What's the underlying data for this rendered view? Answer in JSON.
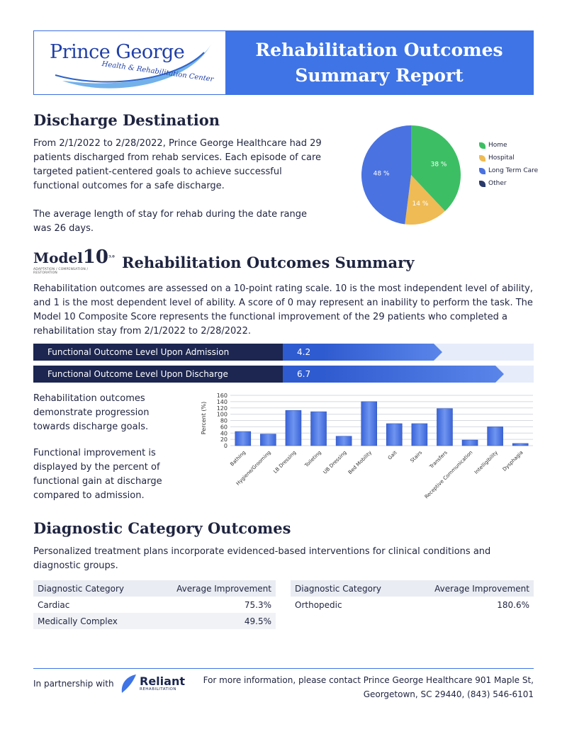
{
  "header": {
    "logo_title": "Prince George",
    "logo_subtitle": "Health & Rehabilitation Center",
    "title_line1": "Rehabilitation Outcomes",
    "title_line2": "Summary Report"
  },
  "discharge": {
    "heading": "Discharge Destination",
    "para1": "From 2/1/2022 to 2/28/2022, Prince George Healthcare had 29 patients discharged from rehab services. Each episode of care targeted patient-centered goals to achieve successful functional outcomes for a safe discharge.",
    "para2": "The average length of stay for rehab during the date range was 26 days."
  },
  "pie_chart": {
    "type": "pie",
    "slices": [
      {
        "name": "Home",
        "value": 38,
        "label": "38 %",
        "color": "#3cbf64"
      },
      {
        "name": "Hospital",
        "value": 14,
        "label": "14 %",
        "color": "#eebb55"
      },
      {
        "name": "Long Term Care",
        "value": 48,
        "label": "48 %",
        "color": "#4a72e0"
      },
      {
        "name": "Other",
        "value": 0,
        "label": "",
        "color": "#2a3a6a"
      }
    ]
  },
  "model10": {
    "logo_m": "M",
    "logo_odel": "odel",
    "logo_ten": "10",
    "logo_sup": "3.0",
    "logo_tagline": "ADAPTATION / COMPENSATION / RESTORATION"
  },
  "summary": {
    "heading": "Rehabilitation Outcomes Summary",
    "para": "Rehabilitation outcomes are assessed on a 10-point rating scale. 10 is the most independent level of ability, and 1 is the most dependent level of ability. A score of 0 may represent an inability to perform the task. The Model 10 Composite Score represents the functional improvement of the 29 patients who completed a rehabilitation stay from 2/1/2022 to 2/28/2022.",
    "admission_label": "Functional Outcome Level Upon Admission",
    "admission_value": "4.2",
    "admission_score": 4.2,
    "discharge_label": "Functional Outcome Level Upon Discharge",
    "discharge_value": "6.7",
    "discharge_score": 6.7,
    "side_para1": "Rehabilitation outcomes demonstrate progression towards discharge goals.",
    "side_para2": "Functional improvement is displayed by the percent of functional gain at discharge compared to admission."
  },
  "chart_data": {
    "type": "bar",
    "title": "",
    "xlabel": "",
    "ylabel": "Percent (%)",
    "ylim": [
      0,
      160
    ],
    "yticks": [
      "0",
      "20",
      "40",
      "60",
      "80",
      "100",
      "120",
      "140",
      "160"
    ],
    "categories": [
      "Bathing",
      "Hygiene/Grooming",
      "LB Dressing",
      "Toileting",
      "UB Dressing",
      "Bed Mobility",
      "Gait",
      "Stairs",
      "Transfers",
      "Receptive Communication",
      "Intelligibility",
      "Dysphagia"
    ],
    "values": [
      45,
      37,
      112,
      108,
      30,
      140,
      70,
      70,
      118,
      18,
      60,
      7
    ],
    "grid": true
  },
  "diagnostic": {
    "heading": "Diagnostic Category Outcomes",
    "para": "Personalized treatment plans incorporate evidenced-based interventions for clinical conditions and diagnostic groups.",
    "col1_header": "Diagnostic Category",
    "col2_header": "Average Improvement",
    "left_rows": [
      {
        "category": "Cardiac",
        "improvement": "75.3%"
      },
      {
        "category": "Medically Complex",
        "improvement": "49.5%"
      }
    ],
    "right_rows": [
      {
        "category": "Orthopedic",
        "improvement": "180.6%"
      }
    ]
  },
  "footer": {
    "partnership": "In partnership with",
    "partner_name": "Reliant",
    "partner_sub": "REHABILITATION",
    "contact_line1": "For more information, please contact Prince George Healthcare 901 Maple St,",
    "contact_line2": "Georgetown, SC 29440, (843) 546-6101"
  },
  "colors": {
    "brand_blue": "#3f74e6",
    "navy": "#1c2650",
    "bar_blue": "#4a72e0"
  }
}
